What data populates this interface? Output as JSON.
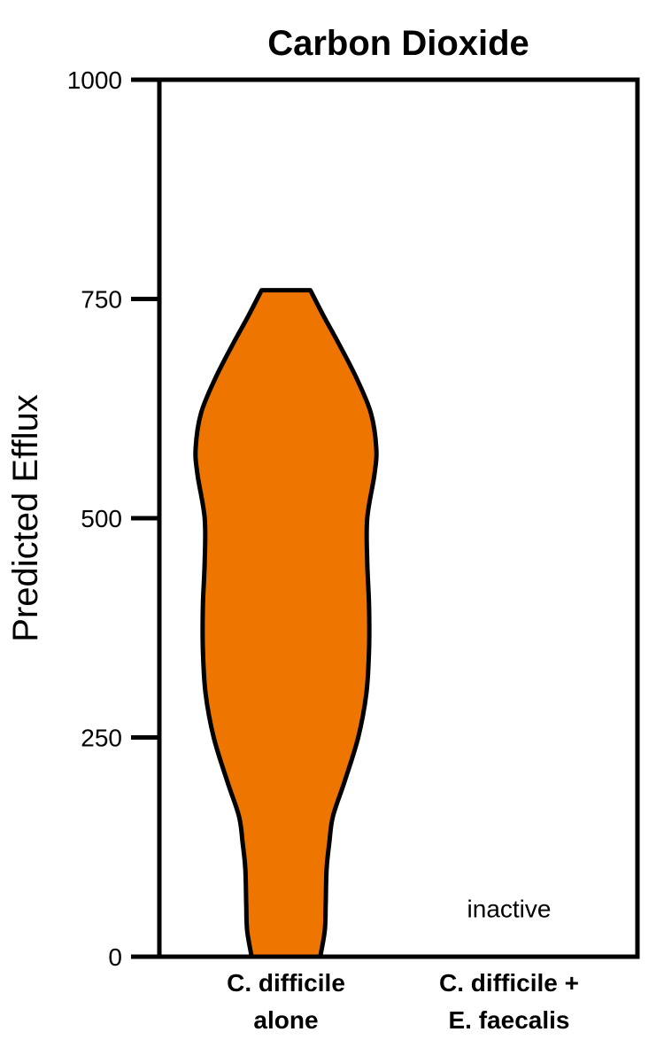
{
  "chart_data": {
    "type": "violin",
    "title": "Carbon Dioxide",
    "ylabel": "Predicted Efflux",
    "xlabel": "",
    "ylim": [
      0,
      1000
    ],
    "yticks": [
      0,
      250,
      500,
      750,
      1000
    ],
    "ytick_labels": [
      "0",
      "250",
      "500",
      "750",
      "1000"
    ],
    "categories": [
      [
        "C. difficile",
        "alone"
      ],
      [
        "C. difficile +",
        "E. faecalis"
      ]
    ],
    "series": [
      {
        "category_index": 0,
        "color": "#EE7600",
        "range": [
          0,
          760
        ],
        "density": [
          [
            0,
            0.38
          ],
          [
            30,
            0.43
          ],
          [
            60,
            0.44
          ],
          [
            100,
            0.45
          ],
          [
            130,
            0.48
          ],
          [
            160,
            0.52
          ],
          [
            200,
            0.65
          ],
          [
            250,
            0.8
          ],
          [
            300,
            0.89
          ],
          [
            350,
            0.92
          ],
          [
            400,
            0.92
          ],
          [
            450,
            0.9
          ],
          [
            500,
            0.9
          ],
          [
            550,
            0.98
          ],
          [
            580,
            1.0
          ],
          [
            620,
            0.94
          ],
          [
            660,
            0.78
          ],
          [
            700,
            0.58
          ],
          [
            730,
            0.42
          ],
          [
            760,
            0.27
          ]
        ]
      }
    ],
    "annotations": [
      {
        "text": "inactive",
        "category_index": 1,
        "y": 50
      }
    ]
  }
}
